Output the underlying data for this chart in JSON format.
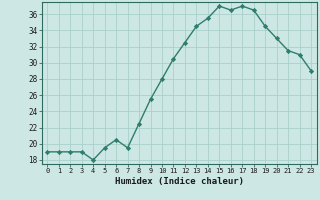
{
  "x": [
    0,
    1,
    2,
    3,
    4,
    5,
    6,
    7,
    8,
    9,
    10,
    11,
    12,
    13,
    14,
    15,
    16,
    17,
    18,
    19,
    20,
    21,
    22,
    23
  ],
  "y": [
    19,
    19,
    19,
    19,
    18,
    19.5,
    20.5,
    19.5,
    22.5,
    25.5,
    28,
    30.5,
    32.5,
    34.5,
    35.5,
    37,
    36.5,
    37,
    36.5,
    34.5,
    33,
    31.5,
    31,
    29
  ],
  "line_color": "#2e7d6e",
  "marker": "D",
  "marker_size": 2.2,
  "bg_color": "#cde8e4",
  "grid_color": "#aacfca",
  "xlabel": "Humidex (Indice chaleur)",
  "ylim": [
    17.5,
    37.5
  ],
  "yticks": [
    18,
    20,
    22,
    24,
    26,
    28,
    30,
    32,
    34,
    36
  ],
  "xlim": [
    -0.5,
    23.5
  ],
  "xticks": [
    0,
    1,
    2,
    3,
    4,
    5,
    6,
    7,
    8,
    9,
    10,
    11,
    12,
    13,
    14,
    15,
    16,
    17,
    18,
    19,
    20,
    21,
    22,
    23
  ]
}
